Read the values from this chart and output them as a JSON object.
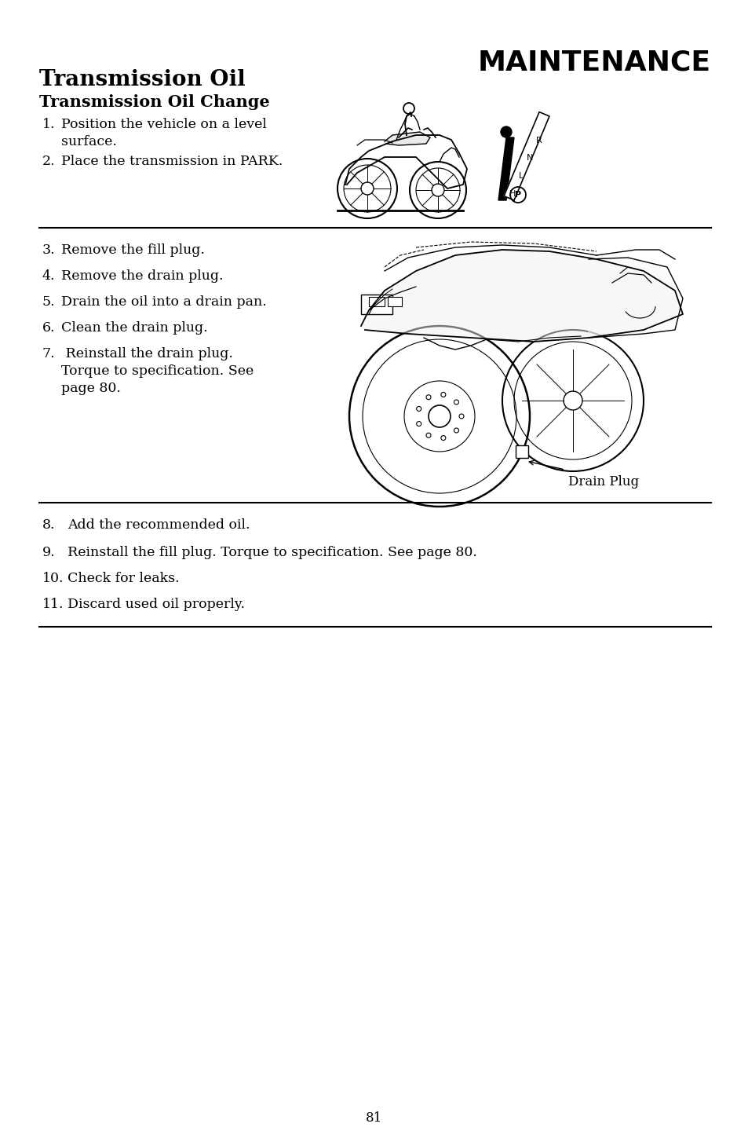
{
  "bg_color": "#ffffff",
  "header_title": "MAINTENANCE",
  "section_title": "Transmission Oil",
  "subsection_title": "Transmission Oil Change",
  "steps_group1": [
    {
      "num": "1.",
      "text": "Position the vehicle on a level\nsurface."
    },
    {
      "num": "2.",
      "text": "Place the transmission in PARK."
    }
  ],
  "steps_group2": [
    {
      "num": "3.",
      "text": "Remove the fill plug."
    },
    {
      "num": "4.",
      "text": "Remove the drain plug."
    },
    {
      "num": "5.",
      "text": "Drain the oil into a drain pan."
    },
    {
      "num": "6.",
      "text": "Clean the drain plug."
    },
    {
      "num": "7.",
      "text": " Reinstall the drain plug.\nTorque to specification. See\npage 80."
    }
  ],
  "drain_plug_label": "Drain Plug",
  "steps_group3": [
    {
      "num": "8.",
      "text": "Add the recommended oil."
    },
    {
      "num": "9.",
      "text": "Reinstall the fill plug. Torque to specification. See page 80."
    },
    {
      "num": "10.",
      "text": "Check for leaks."
    },
    {
      "num": "11.",
      "text": "Discard used oil properly."
    }
  ],
  "page_number": "81",
  "text_color": "#000000",
  "line_color": "#000000"
}
